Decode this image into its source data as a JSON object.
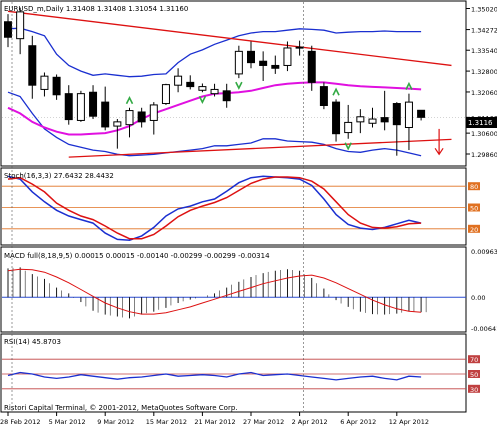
{
  "chart_data": {
    "type": "candlestick",
    "symbol_line": "EURUSD_m,Daily  1.31408 1.31408 1.31054 1.31160",
    "footer": "Ristori Capital Terminal, © 2001-2012, MetaQuotes Software Corp.",
    "current_price": "1.3116",
    "x_labels": [
      "28 Feb 2012",
      "5 Mar 2012",
      "9 Mar 2012",
      "15 Mar 2012",
      "21 Mar 2012",
      "27 Mar 2012",
      "2 Apr 2012",
      "6 Apr 2012",
      "12 Apr 2012"
    ],
    "x_label_index": [
      0,
      4,
      8,
      12,
      16,
      20,
      24,
      28,
      32
    ],
    "price_panel": {
      "ylim": [
        1.2947,
        1.3525
      ],
      "ticks": [
        "1.35020",
        "1.34272",
        "1.33540",
        "1.32800",
        "1.32060",
        "1.31160",
        "1.30600",
        "1.29860"
      ],
      "tick_values": [
        1.3502,
        1.34272,
        1.3354,
        1.328,
        1.3206,
        1.3116,
        1.306,
        1.2986
      ],
      "candles": [
        {
          "o": 1.3455,
          "h": 1.3482,
          "l": 1.3365,
          "c": 1.34
        },
        {
          "o": 1.3395,
          "h": 1.3505,
          "l": 1.334,
          "c": 1.349
        },
        {
          "o": 1.337,
          "h": 1.3405,
          "l": 1.3182,
          "c": 1.323
        },
        {
          "o": 1.3215,
          "h": 1.3275,
          "l": 1.319,
          "c": 1.3262
        },
        {
          "o": 1.3258,
          "h": 1.3268,
          "l": 1.3178,
          "c": 1.3196
        },
        {
          "o": 1.32,
          "h": 1.323,
          "l": 1.309,
          "c": 1.3108
        },
        {
          "o": 1.3105,
          "h": 1.321,
          "l": 1.31,
          "c": 1.32
        },
        {
          "o": 1.3205,
          "h": 1.323,
          "l": 1.311,
          "c": 1.312
        },
        {
          "o": 1.317,
          "h": 1.3225,
          "l": 1.307,
          "c": 1.3082
        },
        {
          "o": 1.3085,
          "h": 1.311,
          "l": 1.3005,
          "c": 1.31
        },
        {
          "o": 1.309,
          "h": 1.315,
          "l": 1.3045,
          "c": 1.314
        },
        {
          "o": 1.3135,
          "h": 1.315,
          "l": 1.308,
          "c": 1.31
        },
        {
          "o": 1.3105,
          "h": 1.317,
          "l": 1.3055,
          "c": 1.316
        },
        {
          "o": 1.3165,
          "h": 1.3235,
          "l": 1.316,
          "c": 1.3232
        },
        {
          "o": 1.323,
          "h": 1.329,
          "l": 1.3205,
          "c": 1.3262
        },
        {
          "o": 1.324,
          "h": 1.3265,
          "l": 1.3215,
          "c": 1.3225
        },
        {
          "o": 1.3212,
          "h": 1.3236,
          "l": 1.3205,
          "c": 1.3225
        },
        {
          "o": 1.32,
          "h": 1.3235,
          "l": 1.319,
          "c": 1.3215
        },
        {
          "o": 1.321,
          "h": 1.3235,
          "l": 1.315,
          "c": 1.3175
        },
        {
          "o": 1.327,
          "h": 1.337,
          "l": 1.3255,
          "c": 1.335
        },
        {
          "o": 1.335,
          "h": 1.3385,
          "l": 1.329,
          "c": 1.331
        },
        {
          "o": 1.3315,
          "h": 1.335,
          "l": 1.3245,
          "c": 1.33
        },
        {
          "o": 1.33,
          "h": 1.3335,
          "l": 1.327,
          "c": 1.329
        },
        {
          "o": 1.33,
          "h": 1.3385,
          "l": 1.328,
          "c": 1.3362
        },
        {
          "o": 1.3365,
          "h": 1.3388,
          "l": 1.3335,
          "c": 1.3362
        },
        {
          "o": 1.335,
          "h": 1.337,
          "l": 1.321,
          "c": 1.324
        },
        {
          "o": 1.3225,
          "h": 1.324,
          "l": 1.3145,
          "c": 1.3158
        },
        {
          "o": 1.317,
          "h": 1.318,
          "l": 1.303,
          "c": 1.3058
        },
        {
          "o": 1.3062,
          "h": 1.316,
          "l": 1.304,
          "c": 1.3098
        },
        {
          "o": 1.31,
          "h": 1.3145,
          "l": 1.306,
          "c": 1.3118
        },
        {
          "o": 1.3095,
          "h": 1.315,
          "l": 1.308,
          "c": 1.311
        },
        {
          "o": 1.3115,
          "h": 1.321,
          "l": 1.307,
          "c": 1.31
        },
        {
          "o": 1.3165,
          "h": 1.317,
          "l": 1.298,
          "c": 1.309
        },
        {
          "o": 1.308,
          "h": 1.32,
          "l": 1.3,
          "c": 1.317
        },
        {
          "o": 1.3141,
          "h": 1.3141,
          "l": 1.3105,
          "c": 1.3116
        }
      ],
      "bands": {
        "upper": [
          1.343,
          1.3432,
          1.342,
          1.3405,
          1.334,
          1.33,
          1.328,
          1.3265,
          1.327,
          1.3265,
          1.326,
          1.3262,
          1.3268,
          1.327,
          1.331,
          1.334,
          1.3355,
          1.3375,
          1.339,
          1.3405,
          1.3415,
          1.342,
          1.342,
          1.3425,
          1.343,
          1.3428,
          1.3425,
          1.3415,
          1.3418,
          1.342,
          1.342,
          1.3422,
          1.342,
          1.342,
          1.342
        ],
        "lower": [
          1.3205,
          1.319,
          1.313,
          1.3075,
          1.3045,
          1.302,
          1.301,
          1.3,
          1.2995,
          1.2985,
          1.298,
          1.2982,
          1.2985,
          1.299,
          1.2995,
          1.3,
          1.3005,
          1.3015,
          1.3015,
          1.302,
          1.3025,
          1.304,
          1.304,
          1.3032,
          1.303,
          1.3028,
          1.302,
          1.3005,
          1.2995,
          1.2992,
          1.3,
          1.3005,
          1.3,
          1.299,
          1.298
        ],
        "middle": [
          1.315,
          1.313,
          1.31,
          1.308,
          1.3065,
          1.3055,
          1.3055,
          1.3058,
          1.306,
          1.307,
          1.3085,
          1.311,
          1.313,
          1.3145,
          1.316,
          1.3175,
          1.319,
          1.32,
          1.3202,
          1.3205,
          1.321,
          1.322,
          1.323,
          1.3235,
          1.3238,
          1.324,
          1.324,
          1.3235,
          1.323,
          1.3226,
          1.3224,
          1.3222,
          1.322,
          1.3218,
          1.3215
        ]
      },
      "trend_lines": [
        {
          "x1": 0,
          "y1": 1.3492,
          "x2": 36.5,
          "y2": 1.33
        },
        {
          "x1": 5,
          "y1": 1.2975,
          "x2": 36.5,
          "y2": 1.3038
        }
      ],
      "up_arrows": [
        10,
        27,
        33
      ],
      "down_arrows": [
        16,
        19,
        28
      ]
    },
    "stoch_panel": {
      "label": "Stoch(16,3,3) 27.6432 28.4432",
      "levels": [
        "80",
        "50",
        "20"
      ],
      "level_values": [
        80,
        50,
        20
      ],
      "ylim": [
        0,
        100
      ],
      "main": [
        94,
        90,
        72,
        58,
        46,
        38,
        33,
        28,
        14,
        5,
        4,
        10,
        22,
        38,
        48,
        52,
        58,
        62,
        73,
        85,
        92,
        94,
        93,
        92,
        90,
        81,
        62,
        40,
        26,
        21,
        19,
        22,
        27,
        32,
        28
      ],
      "signal": [
        90,
        92,
        83,
        72,
        56,
        46,
        38,
        33,
        24,
        14,
        6,
        6,
        12,
        24,
        37,
        46,
        52,
        57,
        64,
        74,
        84,
        90,
        93,
        93,
        92,
        87,
        76,
        58,
        40,
        28,
        22,
        21,
        23,
        27,
        28
      ]
    },
    "macd_panel": {
      "label": "MACD full(8,18,9,5) 0.00015 0.00015 -0.00140 -0.00299 -0.00299 -0.00314",
      "ticks": [
        "0.00963",
        "0.00",
        "-0.00641"
      ],
      "tick_values": [
        0.00963,
        0.0,
        -0.00641
      ],
      "ylim": [
        -0.0068,
        0.0098
      ],
      "hist": [
        0.006,
        0.0062,
        0.0048,
        0.0038,
        0.002,
        0.0008,
        -0.001,
        -0.0028,
        -0.0036,
        -0.004,
        -0.0044,
        -0.0036,
        -0.003,
        -0.0022,
        -0.0012,
        -0.0005,
        0.0,
        0.0008,
        0.002,
        0.0032,
        0.0042,
        0.005,
        0.0055,
        0.0058,
        0.0055,
        0.004,
        0.0018,
        -0.0006,
        -0.002,
        -0.003,
        -0.0035,
        -0.0036,
        -0.0034,
        -0.003,
        -0.0031
      ],
      "signal": [
        0.0055,
        0.0058,
        0.0057,
        0.0052,
        0.0042,
        0.003,
        0.0016,
        0.0002,
        -0.0012,
        -0.0022,
        -0.003,
        -0.0035,
        -0.0035,
        -0.0032,
        -0.0026,
        -0.002,
        -0.0012,
        -0.0004,
        0.0004,
        0.0012,
        0.002,
        0.0028,
        0.0034,
        0.004,
        0.0044,
        0.0046,
        0.004,
        0.003,
        0.0018,
        0.0006,
        -0.0006,
        -0.0016,
        -0.0024,
        -0.0029,
        -0.0031
      ]
    },
    "rsi_panel": {
      "label": "RSI(14) 45.8703",
      "levels": [
        "70",
        "50",
        "30"
      ],
      "level_values": [
        70,
        50,
        30
      ],
      "ylim": [
        0,
        100
      ],
      "values": [
        48,
        52,
        50,
        46,
        44,
        46,
        49,
        47,
        45,
        43,
        45,
        46,
        48,
        50,
        47,
        48,
        49,
        48,
        46,
        50,
        52,
        48,
        49,
        50,
        48,
        46,
        44,
        42,
        44,
        46,
        47,
        44,
        42,
        47,
        46
      ]
    }
  }
}
